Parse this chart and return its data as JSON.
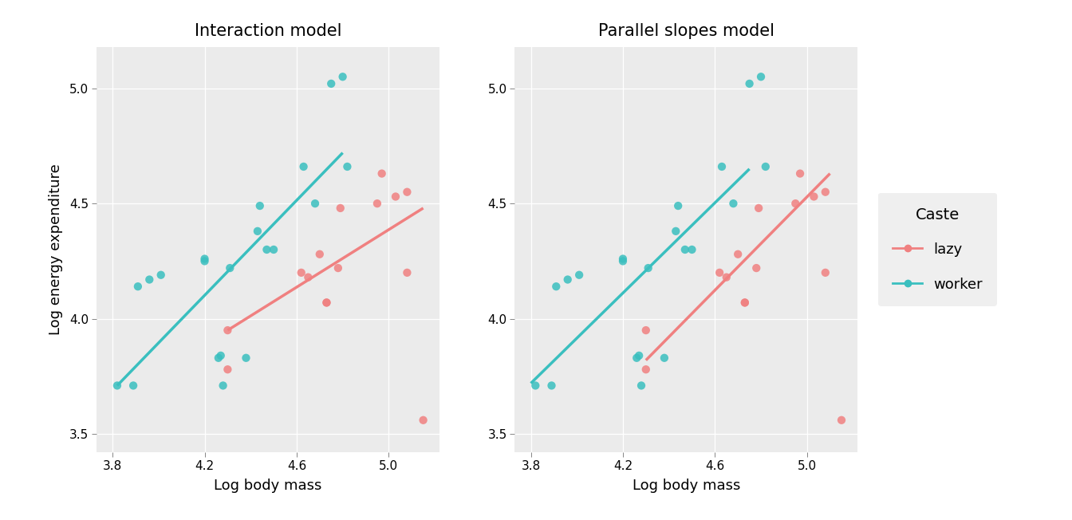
{
  "title_left": "Interaction model",
  "title_right": "Parallel slopes model",
  "xlabel": "Log body mass",
  "ylabel": "Log energy expenditure",
  "xlim": [
    3.73,
    5.22
  ],
  "ylim": [
    3.42,
    5.18
  ],
  "xticks": [
    3.8,
    4.2,
    4.6,
    5.0
  ],
  "yticks": [
    3.5,
    4.0,
    4.5,
    5.0
  ],
  "bg_color": "#EBEBEB",
  "fig_bg_color": "#FFFFFF",
  "color_lazy": "#F08080",
  "color_worker": "#3ABFBF",
  "worker_x": [
    3.82,
    3.89,
    3.91,
    3.96,
    4.01,
    4.2,
    4.2,
    4.26,
    4.27,
    4.28,
    4.31,
    4.38,
    4.43,
    4.44,
    4.47,
    4.5,
    4.63,
    4.68,
    4.75,
    4.8,
    4.82
  ],
  "worker_y": [
    3.71,
    3.71,
    4.14,
    4.17,
    4.19,
    4.25,
    4.26,
    3.83,
    3.84,
    3.71,
    4.22,
    3.83,
    4.38,
    4.49,
    4.3,
    4.3,
    4.66,
    4.5,
    5.02,
    5.05,
    4.66
  ],
  "lazy_x": [
    4.3,
    4.3,
    4.62,
    4.65,
    4.7,
    4.73,
    4.73,
    4.79,
    4.95,
    4.97,
    5.03,
    5.08,
    5.08,
    5.15,
    4.78
  ],
  "lazy_y": [
    3.78,
    3.95,
    4.2,
    4.18,
    4.28,
    4.07,
    4.07,
    4.48,
    4.5,
    4.63,
    4.53,
    4.55,
    4.2,
    3.56,
    4.22
  ],
  "interact_worker_line_x": [
    3.82,
    4.8
  ],
  "interact_worker_line_y": [
    3.71,
    4.72
  ],
  "interact_lazy_line_x": [
    4.3,
    5.15
  ],
  "interact_lazy_line_y": [
    3.95,
    4.48
  ],
  "parallel_worker_line_x": [
    3.8,
    4.75
  ],
  "parallel_worker_line_y": [
    3.72,
    4.65
  ],
  "parallel_lazy_line_x": [
    4.3,
    5.1
  ],
  "parallel_lazy_line_y": [
    3.82,
    4.63
  ],
  "legend_title": "Caste",
  "legend_lazy": "lazy",
  "legend_worker": "worker",
  "line_width": 2.5,
  "marker_size": 55,
  "marker_alpha": 0.85,
  "title_fontsize": 15,
  "axis_label_fontsize": 13,
  "tick_fontsize": 11,
  "legend_fontsize": 13,
  "legend_title_fontsize": 14
}
